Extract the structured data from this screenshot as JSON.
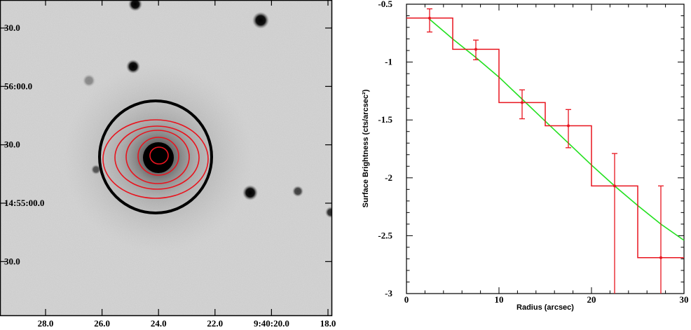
{
  "image_panel": {
    "ra_tick_labels": [
      "28.0",
      "26.0",
      "24.0",
      "22.0",
      "9:40:20.0",
      "18.0"
    ],
    "ra_tick_values_sec": [
      28.0,
      26.0,
      24.0,
      22.0,
      20.0,
      18.0
    ],
    "dec_tick_labels": [
      "30.0",
      "56:00.0",
      "30.0",
      "14:55:00.0",
      "30.0"
    ],
    "dec_tick_values_arcsec_from_14_55_00": [
      90,
      60,
      30,
      0,
      -30
    ],
    "contour_color": "#e8141e",
    "aperture_color": "#000000",
    "contour_count": 5
  },
  "chart_data": {
    "type": "line",
    "title": "",
    "xlabel": "Radius (arcsec)",
    "ylabel": "Surface Brightness (cts/arcsec²)",
    "xlim": [
      0,
      30
    ],
    "ylim": [
      -3,
      -0.5
    ],
    "x_ticks": [
      0,
      10,
      20,
      30
    ],
    "x_tick_labels": [
      "0",
      "10",
      "20",
      "30"
    ],
    "y_ticks": [
      -0.5,
      -1,
      -1.5,
      -2,
      -2.5,
      -3
    ],
    "y_tick_labels": [
      "-0.5",
      "-1",
      "-1.5",
      "-2",
      "-2.5",
      "-3"
    ],
    "series": [
      {
        "type": "step",
        "color": "#e8141e",
        "bins": [
          {
            "x_lo": 0,
            "x_hi": 5,
            "x": 2.5,
            "y": -0.62,
            "err_lo": 0.12,
            "err_hi": 0.08
          },
          {
            "x_lo": 5,
            "x_hi": 10,
            "x": 7.5,
            "y": -0.89,
            "err_lo": 0.09,
            "err_hi": 0.08
          },
          {
            "x_lo": 10,
            "x_hi": 15,
            "x": 12.5,
            "y": -1.35,
            "err_lo": 0.14,
            "err_hi": 0.11
          },
          {
            "x_lo": 15,
            "x_hi": 20,
            "x": 17.5,
            "y": -1.55,
            "err_lo": 0.19,
            "err_hi": 0.14
          },
          {
            "x_lo": 20,
            "x_hi": 25,
            "x": 22.5,
            "y": -2.07,
            "err_lo": 0.96,
            "err_hi": 0.28
          },
          {
            "x_lo": 25,
            "x_hi": 30,
            "x": 27.5,
            "y": -2.69,
            "err_lo": 0.34,
            "err_hi": 0.62
          }
        ]
      },
      {
        "type": "line",
        "color": "#22e01e",
        "x": [
          2.5,
          5,
          7.5,
          10,
          12.5,
          15,
          17.5,
          20,
          22.5,
          25,
          27.5,
          30
        ],
        "y": [
          -0.63,
          -0.8,
          -0.96,
          -1.13,
          -1.32,
          -1.51,
          -1.7,
          -1.89,
          -2.07,
          -2.24,
          -2.4,
          -2.54
        ]
      }
    ]
  }
}
